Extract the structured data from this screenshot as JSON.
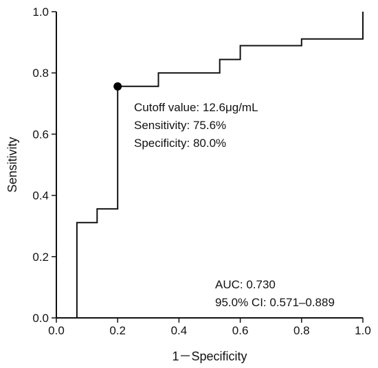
{
  "chart_data": {
    "type": "line",
    "xlabel": "1－Specificity",
    "ylabel": "Sensitivity",
    "xlim": [
      0.0,
      1.0
    ],
    "ylim": [
      0.0,
      1.0
    ],
    "x_ticks": [
      "0.0",
      "0.2",
      "0.4",
      "0.6",
      "0.8",
      "1.0"
    ],
    "y_ticks": [
      "0.0",
      "0.2",
      "0.4",
      "0.6",
      "0.8",
      "1.0"
    ],
    "grid": false,
    "series": [
      {
        "name": "",
        "style": "step",
        "color": "#111111",
        "x": [
          0.067,
          0.067,
          0.133,
          0.133,
          0.2,
          0.2,
          0.333,
          0.333,
          0.533,
          0.533,
          0.6,
          0.6,
          0.8,
          0.8,
          1.0,
          1.0
        ],
        "y": [
          0.0,
          0.311,
          0.311,
          0.356,
          0.356,
          0.756,
          0.756,
          0.8,
          0.8,
          0.844,
          0.844,
          0.889,
          0.889,
          0.911,
          0.911,
          1.0
        ]
      }
    ],
    "cutoff_point": {
      "x": 0.2,
      "y": 0.756,
      "color": "#000000"
    },
    "annotations": {
      "cutoff_lines": [
        "Cutoff value: 12.6μg/mL",
        "Sensitivity: 75.6%",
        "Specificity: 80.0%"
      ],
      "auc_lines": [
        "AUC: 0.730",
        "95.0% CI: 0.571–0.889"
      ]
    }
  }
}
